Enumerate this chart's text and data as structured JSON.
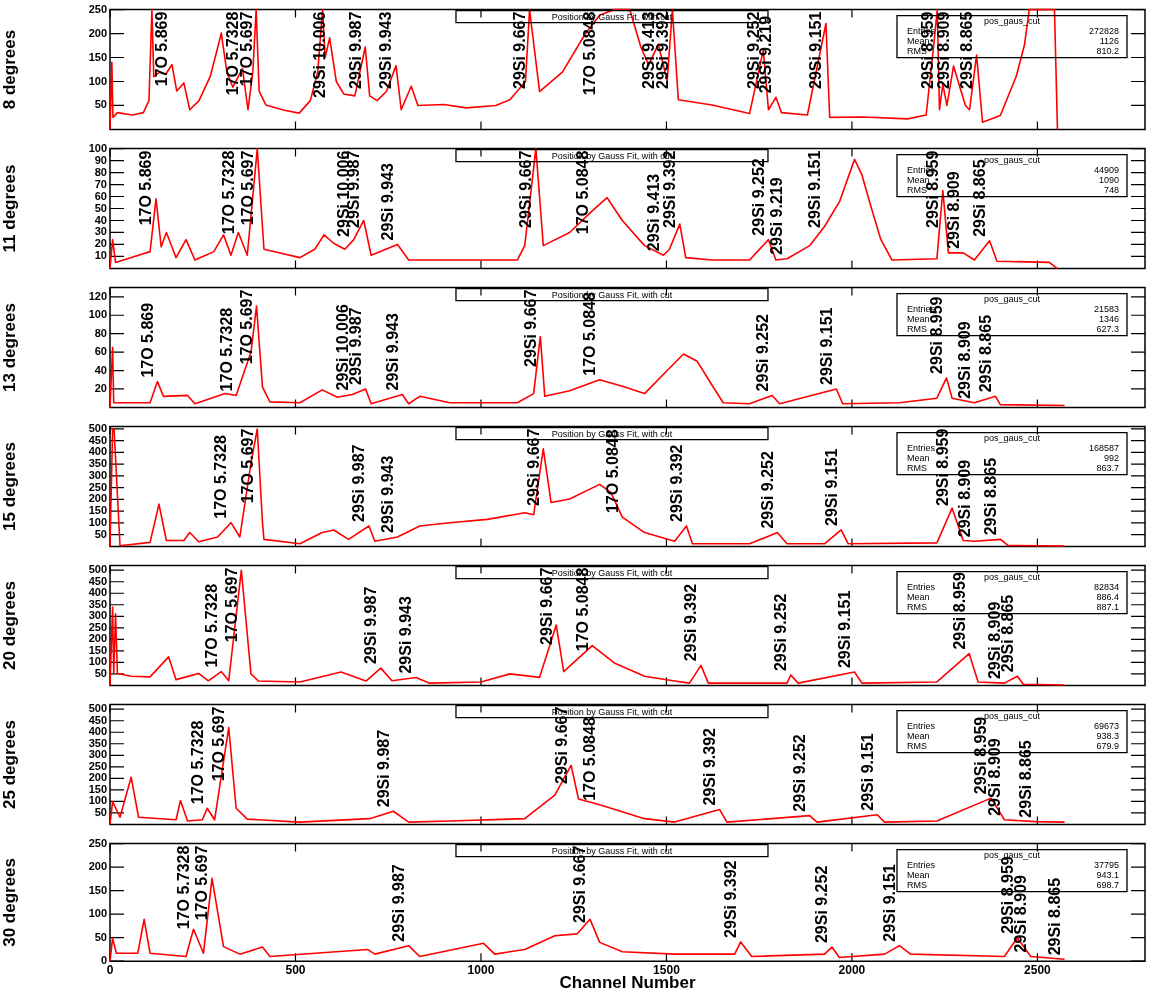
{
  "chart_data": [
    {
      "type": "line",
      "title": "Position by Gauss Fit, with cut",
      "ylabel": "8 degrees",
      "xlim": [
        0,
        2790
      ],
      "xticks": [
        0,
        500,
        1000,
        1500,
        2000,
        2500
      ],
      "ylim": [
        0,
        250
      ],
      "yticks": [
        50,
        100,
        150,
        200,
        250
      ],
      "tick_labels": "y",
      "marker": "none",
      "grid": false,
      "series": [
        {
          "color": "#ff0000",
          "x": [
            0,
            5,
            8,
            20,
            60,
            90,
            105,
            113,
            118,
            135,
            150,
            167,
            180,
            199,
            215,
            240,
            270,
            290,
            300,
            315,
            331,
            357,
            372,
            385,
            394,
            402,
            420,
            470,
            510,
            540,
            560,
            573,
            580,
            592,
            610,
            630,
            660,
            688,
            700,
            720,
            745,
            771,
            785,
            812,
            830,
            900,
            960,
            1040,
            1078,
            1120,
            1131,
            1158,
            1220,
            1280,
            1320,
            1360,
            1401,
            1431,
            1452,
            1478,
            1502,
            1516,
            1532,
            1623,
            1724,
            1761,
            1775,
            1795,
            1810,
            1880,
            1930,
            1940,
            2030,
            2150,
            2200,
            2220,
            2230,
            2236,
            2245,
            2256,
            2274,
            2306,
            2317,
            2336,
            2352,
            2400,
            2443,
            2465,
            2478,
            2546,
            2554
          ],
          "values": [
            0,
            140,
            25,
            35,
            30,
            35,
            60,
            250,
            110,
            120,
            115,
            135,
            80,
            97,
            41,
            60,
            110,
            170,
            201,
            120,
            88,
            127,
            41,
            120,
            250,
            80,
            51,
            40,
            34,
            60,
            120,
            250,
            150,
            191,
            100,
            74,
            70,
            172,
            70,
            60,
            79,
            133,
            41,
            90,
            50,
            52,
            45,
            50,
            62,
            100,
            250,
            79,
            120,
            198,
            238,
            250,
            250,
            172,
            134,
            178,
            101,
            250,
            62,
            51,
            33,
            165,
            41,
            67,
            35,
            30,
            221,
            25,
            26,
            22,
            30,
            172,
            250,
            41,
            94,
            50,
            132,
            50,
            41,
            155,
            15,
            29,
            111,
            176,
            250,
            250,
            0
          ]
        }
      ],
      "annotations": [
        {
          "text": "17O 5.869",
          "x": 167,
          "y": 135
        },
        {
          "text": "17O 5.7328",
          "x": 357,
          "y": 127
        },
        {
          "text": "17O 5.697",
          "x": 394,
          "y": 250
        },
        {
          "text": "29Si 10.006",
          "x": 592,
          "y": 191
        },
        {
          "text": "29Si 9.987",
          "x": 688,
          "y": 172
        },
        {
          "text": "29Si 9.943",
          "x": 771,
          "y": 133
        },
        {
          "text": "29Si 9.667",
          "x": 1131,
          "y": 250
        },
        {
          "text": "17O 5.0848",
          "x": 1320,
          "y": 238
        },
        {
          "text": "29Si 9.413",
          "x": 1478,
          "y": 178
        },
        {
          "text": "29Si 9.392",
          "x": 1516,
          "y": 250
        },
        {
          "text": "29Si 9.252",
          "x": 1761,
          "y": 165
        },
        {
          "text": "29Si 9.219",
          "x": 1795,
          "y": 67
        },
        {
          "text": "29Si 9.151",
          "x": 1930,
          "y": 221
        },
        {
          "text": "29Si 8.959",
          "x": 2230,
          "y": 250
        },
        {
          "text": "29Si 8.909",
          "x": 2274,
          "y": 132
        },
        {
          "text": "29Si 8.865",
          "x": 2336,
          "y": 155
        },
        "pos_gaus_cut",
        "Entries 272828",
        "Mean 1126",
        "RMS 810.2"
      ]
    },
    {
      "type": "line",
      "title": "Position by Gauss Fit, with cut",
      "ylabel": "11 degrees",
      "xlim": [
        0,
        2790
      ],
      "xticks": [
        0,
        500,
        1000,
        1500,
        2000,
        2500
      ],
      "ylim": [
        0,
        100
      ],
      "yticks": [
        10,
        20,
        30,
        40,
        50,
        60,
        70,
        80,
        90,
        100
      ],
      "tick_labels": "y",
      "marker": "none",
      "grid": false,
      "series": [
        {
          "color": "#ff0000",
          "x": [
            0,
            7,
            15,
            108,
            124,
            138,
            152,
            178,
            205,
            229,
            280,
            306,
            326,
            346,
            370,
            397,
            415,
            512,
            552,
            577,
            603,
            633,
            657,
            684,
            704,
            775,
            805,
            916,
            1098,
            1118,
            1148,
            1168,
            1239,
            1300,
            1340,
            1381,
            1441,
            1492,
            1508,
            1536,
            1552,
            1623,
            1724,
            1775,
            1795,
            1825,
            1886,
            1926,
            1967,
            2007,
            2027,
            2047,
            2078,
            2108,
            2229,
            2245,
            2260,
            2300,
            2330,
            2371,
            2391,
            2532,
            2553
          ],
          "values": [
            0,
            24,
            5,
            14,
            58,
            18,
            30,
            9,
            24,
            7,
            14,
            28,
            11,
            30,
            11,
            100,
            16,
            9,
            16,
            28,
            21,
            16,
            24,
            40,
            11,
            20,
            7,
            7,
            7,
            19,
            100,
            19,
            30,
            48,
            59,
            40,
            19,
            11,
            16,
            37,
            9,
            7,
            7,
            24,
            7,
            8,
            19,
            35,
            56,
            91,
            78,
            56,
            24,
            7,
            8,
            65,
            13,
            13,
            7,
            23,
            6,
            5,
            0
          ]
        }
      ],
      "annotations": [
        {
          "text": "17O 5.869",
          "x": 124,
          "y": 58
        },
        {
          "text": "17O 5.7328",
          "x": 346,
          "y": 30
        },
        {
          "text": "17O 5.697",
          "x": 397,
          "y": 100
        },
        {
          "text": "29Si 10.006",
          "x": 657,
          "y": 24
        },
        {
          "text": "29Si 9.987",
          "x": 684,
          "y": 40
        },
        {
          "text": "29Si 9.943",
          "x": 775,
          "y": 20
        },
        {
          "text": "29Si 9.667",
          "x": 1148,
          "y": 100
        },
        {
          "text": "17O 5.0848",
          "x": 1300,
          "y": 48
        },
        {
          "text": "29Si 9.413",
          "x": 1492,
          "y": 11
        },
        {
          "text": "29Si 9.392",
          "x": 1536,
          "y": 37
        },
        {
          "text": "29Si 9.252",
          "x": 1775,
          "y": 24
        },
        {
          "text": "29Si 9.219",
          "x": 1825,
          "y": 8
        },
        {
          "text": "29Si 9.151",
          "x": 1926,
          "y": 35
        },
        {
          "text": "29Si 8.959",
          "x": 2245,
          "y": 65
        },
        {
          "text": "29Si 8.909",
          "x": 2300,
          "y": 13
        },
        {
          "text": "29Si 8.865",
          "x": 2371,
          "y": 23
        },
        "pos_gaus_cut",
        "Entries 44909",
        "Mean 1090",
        "RMS 748"
      ]
    },
    {
      "type": "line",
      "title": "Position by Gauss Fit, with cut",
      "ylabel": "13 degrees",
      "xlim": [
        0,
        2790
      ],
      "xticks": [
        0,
        500,
        1000,
        1500,
        2000,
        2500
      ],
      "ylim": [
        0,
        130
      ],
      "yticks": [
        20,
        40,
        60,
        80,
        100,
        120
      ],
      "tick_labels": "y",
      "marker": "none",
      "grid": false,
      "series": [
        {
          "color": "#ff0000",
          "x": [
            0,
            7,
            10,
            108,
            128,
            144,
            209,
            229,
            310,
            340,
            380,
            395,
            411,
            431,
            512,
            572,
            613,
            653,
            689,
            704,
            788,
            805,
            835,
            916,
            1098,
            1142,
            1160,
            1172,
            1239,
            1320,
            1381,
            1441,
            1502,
            1546,
            1583,
            1623,
            1653,
            1724,
            1785,
            1805,
            1958,
            1975,
            2128,
            2229,
            2255,
            2270,
            2330,
            2387,
            2400,
            2573
          ],
          "values": [
            0,
            65,
            5,
            5,
            28,
            12,
            13,
            4,
            15,
            13,
            60,
            110,
            22,
            6,
            5,
            19,
            11,
            14,
            20,
            4,
            14,
            4,
            12,
            5,
            5,
            15,
            77,
            12,
            18,
            30,
            23,
            15,
            40,
            58,
            50,
            24,
            5,
            4,
            13,
            4,
            20,
            4,
            5,
            10,
            32,
            10,
            5,
            12,
            3,
            2
          ]
        }
      ],
      "annotations": [
        {
          "text": "17O 5.869",
          "x": 128,
          "y": 28
        },
        {
          "text": "17O 5.7328",
          "x": 340,
          "y": 13
        },
        {
          "text": "17O 5.697",
          "x": 395,
          "y": 110
        },
        {
          "text": "29Si 10.006",
          "x": 653,
          "y": 14
        },
        {
          "text": "29Si 9.987",
          "x": 689,
          "y": 20
        },
        {
          "text": "29Si 9.943",
          "x": 788,
          "y": 14
        },
        {
          "text": "29Si 9.667",
          "x": 1160,
          "y": 77
        },
        {
          "text": "17O 5.0848",
          "x": 1320,
          "y": 30
        },
        {
          "text": "29Si 9.252",
          "x": 1785,
          "y": 13
        },
        {
          "text": "29Si 9.151",
          "x": 1958,
          "y": 20
        },
        {
          "text": "29Si 8.959",
          "x": 2255,
          "y": 32
        },
        {
          "text": "29Si 8.909",
          "x": 2330,
          "y": 5
        },
        {
          "text": "29Si 8.865",
          "x": 2387,
          "y": 12
        },
        "pos_gaus_cut",
        "Entries 21583",
        "Mean 1346",
        "RMS 627.3"
      ]
    },
    {
      "type": "line",
      "title": "Position by Gauss Fit, with cut",
      "ylabel": "15 degrees",
      "xlim": [
        0,
        2790
      ],
      "xticks": [
        0,
        500,
        1000,
        1500,
        2000,
        2500
      ],
      "ylim": [
        0,
        510
      ],
      "yticks": [
        50,
        100,
        150,
        200,
        250,
        300,
        350,
        400,
        450,
        500
      ],
      "tick_labels": "y",
      "marker": "none",
      "grid": false,
      "series": [
        {
          "color": "#ff0000",
          "x": [
            0,
            7,
            11,
            27,
            108,
            132,
            152,
            199,
            215,
            239,
            290,
            326,
            350,
            380,
            397,
            411,
            415,
            512,
            572,
            603,
            643,
            698,
            714,
            775,
            835,
            916,
            1017,
            1118,
            1142,
            1168,
            1189,
            1239,
            1320,
            1350,
            1381,
            1441,
            1522,
            1554,
            1570,
            1724,
            1799,
            1825,
            1926,
            1971,
            1990,
            2229,
            2270,
            2300,
            2330,
            2401,
            2420,
            2573
          ],
          "values": [
            0,
            500,
            500,
            3,
            17,
            180,
            25,
            25,
            59,
            20,
            40,
            101,
            40,
            354,
            500,
            101,
            30,
            11,
            59,
            70,
            30,
            87,
            22,
            40,
            87,
            101,
            115,
            143,
            135,
            415,
            187,
            202,
            264,
            230,
            125,
            59,
            22,
            87,
            11,
            11,
            59,
            11,
            11,
            70,
            11,
            15,
            163,
            25,
            22,
            30,
            4,
            2
          ]
        }
      ],
      "annotations": [
        {
          "text": "17O 5.7328",
          "x": 326,
          "y": 101
        },
        {
          "text": "17O 5.697",
          "x": 397,
          "y": 500
        },
        {
          "text": "29Si 9.987",
          "x": 698,
          "y": 87
        },
        {
          "text": "29Si 9.943",
          "x": 775,
          "y": 40
        },
        {
          "text": "29Si 9.667",
          "x": 1168,
          "y": 415
        },
        {
          "text": "17O 5.0848",
          "x": 1381,
          "y": 125
        },
        {
          "text": "29Si 9.392",
          "x": 1554,
          "y": 87
        },
        {
          "text": "29Si 9.252",
          "x": 1799,
          "y": 59
        },
        {
          "text": "29Si 9.151",
          "x": 1971,
          "y": 70
        },
        {
          "text": "29Si 8.959",
          "x": 2270,
          "y": 163
        },
        {
          "text": "29Si 8.909",
          "x": 2330,
          "y": 22
        },
        {
          "text": "29Si 8.865",
          "x": 2401,
          "y": 30
        },
        "pos_gaus_cut",
        "Entries 168587",
        "Mean 992",
        "RMS 863.7"
      ]
    },
    {
      "type": "line",
      "title": "Position by Gauss Fit, with cut",
      "ylabel": "20 degrees",
      "xlim": [
        0,
        2790
      ],
      "xticks": [
        0,
        500,
        1000,
        1500,
        2000,
        2500
      ],
      "ylim": [
        0,
        520
      ],
      "yticks": [
        50,
        100,
        150,
        200,
        250,
        300,
        350,
        400,
        450,
        500
      ],
      "tick_labels": "y",
      "marker": "none",
      "grid": false,
      "series": [
        {
          "color": "#ff0000",
          "x": [
            0,
            7,
            10,
            15,
            20,
            57,
            108,
            158,
            178,
            239,
            265,
            300,
            320,
            354,
            380,
            400,
            512,
            623,
            690,
            730,
            760,
            825,
            860,
            1000,
            1078,
            1158,
            1203,
            1223,
            1300,
            1361,
            1441,
            1522,
            1562,
            1593,
            1613,
            1825,
            1835,
            1855,
            2007,
            2027,
            2229,
            2316,
            2340,
            2411,
            2446,
            2462,
            2573
          ],
          "values": [
            0,
            340,
            52,
            311,
            52,
            40,
            37,
            124,
            25,
            52,
            20,
            60,
            20,
            500,
            50,
            19,
            15,
            58,
            19,
            75,
            20,
            34,
            10,
            15,
            50,
            35,
            262,
            60,
            173,
            96,
            40,
            19,
            10,
            87,
            10,
            10,
            45,
            10,
            58,
            10,
            15,
            138,
            15,
            10,
            40,
            5,
            2
          ]
        }
      ],
      "annotations": [
        {
          "text": "17O 5.7328",
          "x": 300,
          "y": 60
        },
        {
          "text": "17O 5.697",
          "x": 354,
          "y": 500
        },
        {
          "text": "29Si 9.987",
          "x": 730,
          "y": 75
        },
        {
          "text": "29Si 9.943",
          "x": 825,
          "y": 34
        },
        {
          "text": "29Si 9.667",
          "x": 1203,
          "y": 262
        },
        {
          "text": "17O 5.0848",
          "x": 1300,
          "y": 173
        },
        {
          "text": "29Si 9.392",
          "x": 1593,
          "y": 87
        },
        {
          "text": "29Si 9.252",
          "x": 1835,
          "y": 45
        },
        {
          "text": "29Si 9.151",
          "x": 2007,
          "y": 58
        },
        {
          "text": "29Si 8.959",
          "x": 2316,
          "y": 138
        },
        {
          "text": "29Si 8.909",
          "x": 2411,
          "y": 10
        },
        {
          "text": "29Si 8.865",
          "x": 2446,
          "y": 40
        },
        "pos_gaus_cut",
        "Entries 82834",
        "Mean 886.4",
        "RMS 887.1"
      ]
    },
    {
      "type": "line",
      "title": "Position by Gauss Fit, with cut",
      "ylabel": "25 degrees",
      "xlim": [
        0,
        2790
      ],
      "xticks": [
        0,
        500,
        1000,
        1500,
        2000,
        2500
      ],
      "ylim": [
        0,
        520
      ],
      "yticks": [
        50,
        100,
        150,
        200,
        250,
        300,
        350,
        400,
        450,
        500
      ],
      "tick_labels": "y",
      "marker": "none",
      "grid": false,
      "series": [
        {
          "color": "#ff0000",
          "x": [
            0,
            7,
            27,
            57,
            77,
            178,
            190,
            209,
            249,
            262,
            282,
            320,
            340,
            370,
            512,
            700,
            764,
            805,
            916,
            1118,
            1199,
            1243,
            1263,
            1320,
            1441,
            1522,
            1643,
            1663,
            1886,
            1906,
            2068,
            2088,
            2229,
            2375,
            2411,
            2496,
            2573
          ],
          "values": [
            0,
            99,
            31,
            205,
            31,
            20,
            104,
            15,
            20,
            70,
            20,
            420,
            70,
            23,
            10,
            25,
            57,
            10,
            15,
            25,
            127,
            256,
            110,
            85,
            25,
            10,
            65,
            10,
            38,
            10,
            42,
            10,
            15,
            114,
            20,
            12,
            10
          ]
        }
      ],
      "annotations": [
        {
          "text": "17O 5.7328",
          "x": 262,
          "y": 70
        },
        {
          "text": "17O 5.697",
          "x": 320,
          "y": 420
        },
        {
          "text": "29Si 9.987",
          "x": 764,
          "y": 57
        },
        {
          "text": "29Si 9.667",
          "x": 1243,
          "y": 256
        },
        {
          "text": "17O 5.0848",
          "x": 1320,
          "y": 85
        },
        {
          "text": "29Si 9.392",
          "x": 1643,
          "y": 65
        },
        {
          "text": "29Si 9.252",
          "x": 1886,
          "y": 38
        },
        {
          "text": "29Si 9.151",
          "x": 2068,
          "y": 42
        },
        {
          "text": "29Si 8.959",
          "x": 2375,
          "y": 114
        },
        {
          "text": "29Si 8.909",
          "x": 2411,
          "y": 20
        },
        {
          "text": "29Si 8.865",
          "x": 2496,
          "y": 12
        },
        "pos_gaus_cut",
        "Entries 69673",
        "Mean 938.3",
        "RMS 679.9"
      ]
    },
    {
      "type": "line",
      "title": "Position by Gauss Fit, with cut",
      "ylabel": "30 degrees",
      "xlabel": "Channel Number",
      "xlim": [
        0,
        2790
      ],
      "xticks": [
        0,
        500,
        1000,
        1500,
        2000,
        2500
      ],
      "ylim": [
        0,
        250
      ],
      "yticks": [
        0,
        50,
        100,
        150,
        200,
        250
      ],
      "marker": "none",
      "grid": false,
      "series": [
        {
          "color": "#ff0000",
          "x": [
            0,
            7,
            17,
            75,
            92,
            108,
            205,
            225,
            252,
            275,
            306,
            350,
            411,
            431,
            694,
            714,
            805,
            835,
            1007,
            1037,
            1118,
            1199,
            1259,
            1294,
            1320,
            1381,
            1522,
            1684,
            1700,
            1730,
            1926,
            1946,
            1966,
            2088,
            2128,
            2158,
            2411,
            2446,
            2482,
            2573
          ],
          "values": [
            0,
            49,
            17,
            17,
            89,
            17,
            10,
            68,
            17,
            176,
            31,
            15,
            30,
            10,
            25,
            15,
            33,
            10,
            38,
            15,
            25,
            54,
            58,
            89,
            40,
            20,
            15,
            15,
            41,
            10,
            15,
            30,
            8,
            15,
            33,
            15,
            10,
            50,
            10,
            4
          ]
        }
      ],
      "annotations": [
        {
          "text": "17O 5.7328",
          "x": 225,
          "y": 68
        },
        {
          "text": "17O 5.697",
          "x": 275,
          "y": 176
        },
        {
          "text": "29Si 9.987",
          "x": 805,
          "y": 33
        },
        {
          "text": "29Si 9.667",
          "x": 1294,
          "y": 89
        },
        {
          "text": "29Si 9.392",
          "x": 1700,
          "y": 41
        },
        {
          "text": "29Si 9.252",
          "x": 1946,
          "y": 30
        },
        {
          "text": "29Si 9.151",
          "x": 2128,
          "y": 33
        },
        {
          "text": "29Si 8.959",
          "x": 2446,
          "y": 50
        },
        {
          "text": "29Si 8.909",
          "x": 2482,
          "y": 10
        },
        {
          "text": "29Si 8.865",
          "x": 2573,
          "y": 4
        },
        "pos_gaus_cut",
        "Entries 37795",
        "Mean 943.1",
        "RMS 698.7"
      ]
    }
  ]
}
